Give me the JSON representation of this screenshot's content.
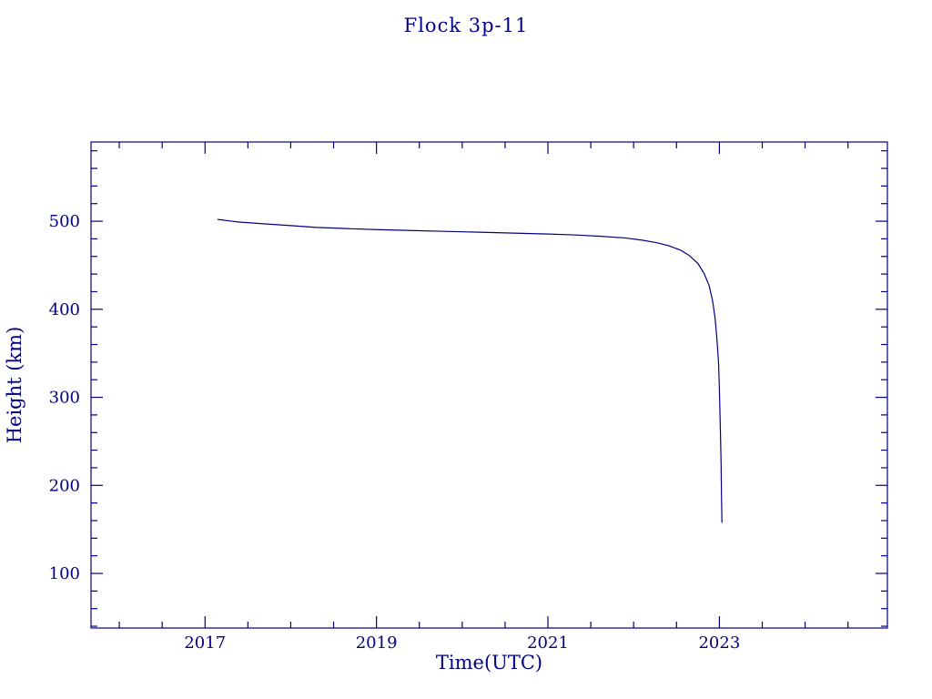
{
  "chart_data": {
    "type": "line",
    "title": "Flock 3p-11",
    "xlabel": "Time(UTC)",
    "ylabel": "Height (km)",
    "xlim": [
      2015.67,
      2024.96
    ],
    "ylim": [
      38,
      590
    ],
    "xticks": [
      2017,
      2019,
      2021,
      2023
    ],
    "yticks": [
      100,
      200,
      300,
      400,
      500
    ],
    "x_minor_step": 0.5,
    "y_minor_step": 20,
    "axis_color": "#000080",
    "line_color": "#000080",
    "grid": false,
    "legend": "none",
    "series": [
      {
        "name": "height",
        "points": [
          [
            2017.15,
            502
          ],
          [
            2017.4,
            499
          ],
          [
            2017.7,
            497
          ],
          [
            2018.0,
            495
          ],
          [
            2018.3,
            493
          ],
          [
            2018.7,
            491.5
          ],
          [
            2019.0,
            490.5
          ],
          [
            2019.4,
            489.5
          ],
          [
            2019.8,
            488.5
          ],
          [
            2020.2,
            487.5
          ],
          [
            2020.6,
            486.5
          ],
          [
            2021.0,
            485.5
          ],
          [
            2021.3,
            484.5
          ],
          [
            2021.6,
            483
          ],
          [
            2021.9,
            481
          ],
          [
            2022.1,
            478.5
          ],
          [
            2022.25,
            476
          ],
          [
            2022.4,
            472.5
          ],
          [
            2022.55,
            467
          ],
          [
            2022.65,
            461
          ],
          [
            2022.75,
            452
          ],
          [
            2022.82,
            441
          ],
          [
            2022.88,
            427
          ],
          [
            2022.92,
            410
          ],
          [
            2022.95,
            390
          ],
          [
            2022.97,
            368
          ],
          [
            2022.99,
            340
          ],
          [
            2023.0,
            310
          ],
          [
            2023.01,
            270
          ],
          [
            2023.02,
            225
          ],
          [
            2023.025,
            185
          ],
          [
            2023.03,
            158
          ]
        ]
      }
    ]
  }
}
